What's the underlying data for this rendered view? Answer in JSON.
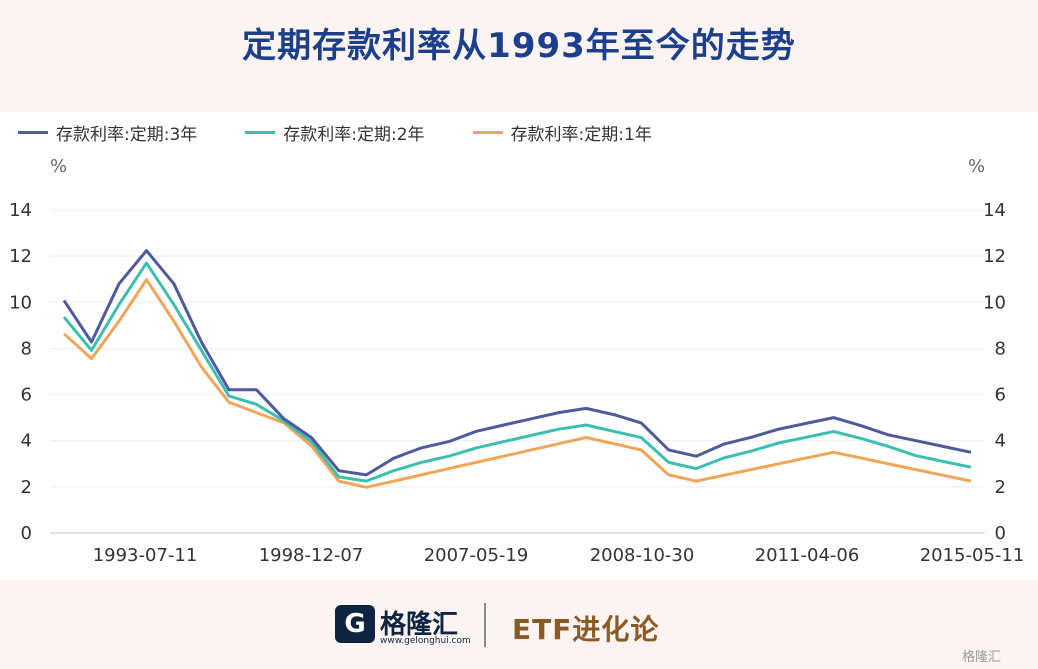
{
  "title": "定期存款利率从1993年至今的走势",
  "legend": [
    {
      "label": "存款利率:定期:3年",
      "color": "#4e5a9c"
    },
    {
      "label": "存款利率:定期:2年",
      "color": "#3dbfb0"
    },
    {
      "label": "存款利率:定期:1年",
      "color": "#f0a65a"
    }
  ],
  "unit_left": "%",
  "unit_right": "%",
  "footer": {
    "logo_mark": "G",
    "brand": "格隆汇",
    "url": "www.gelonghui.com",
    "etf": "ETF进化论",
    "watermark": "格隆汇"
  },
  "chart_data": {
    "type": "line",
    "title": "定期存款利率从1993年至今的走势",
    "x_tick_labels": [
      "1993-07-11",
      "1998-12-07",
      "2007-05-19",
      "2008-10-30",
      "2011-04-06",
      "2015-05-11"
    ],
    "ylim": [
      0,
      14
    ],
    "yticks": [
      0,
      2,
      4,
      6,
      8,
      10,
      12,
      14
    ],
    "grid": true,
    "legend_position": "top-left",
    "series": [
      {
        "name": "存款利率:定期:3年",
        "color": "#4e5a9c",
        "values": [
          10.08,
          8.28,
          10.8,
          12.24,
          10.8,
          8.28,
          6.21,
          6.21,
          4.95,
          4.14,
          2.7,
          2.52,
          3.24,
          3.69,
          3.96,
          4.41,
          4.68,
          4.95,
          5.22,
          5.4,
          5.13,
          4.77,
          3.6,
          3.33,
          3.85,
          4.15,
          4.5,
          4.75,
          5.0,
          4.65,
          4.25,
          4.0,
          3.75,
          3.5
        ]
      },
      {
        "name": "存款利率:定期:2年",
        "color": "#3dbfb0",
        "values": [
          9.36,
          7.92,
          9.9,
          11.7,
          9.9,
          7.92,
          5.94,
          5.58,
          4.86,
          3.96,
          2.43,
          2.25,
          2.7,
          3.06,
          3.33,
          3.69,
          3.96,
          4.23,
          4.5,
          4.68,
          4.41,
          4.14,
          3.06,
          2.79,
          3.25,
          3.55,
          3.9,
          4.15,
          4.4,
          4.1,
          3.75,
          3.35,
          3.1,
          2.85
        ]
      },
      {
        "name": "存款利率:定期:1年",
        "color": "#f0a65a",
        "values": [
          8.64,
          7.56,
          9.18,
          10.98,
          9.18,
          7.2,
          5.67,
          5.22,
          4.77,
          3.78,
          2.25,
          1.98,
          2.25,
          2.52,
          2.79,
          3.06,
          3.33,
          3.6,
          3.87,
          4.14,
          3.87,
          3.6,
          2.52,
          2.25,
          2.5,
          2.75,
          3.0,
          3.25,
          3.5,
          3.25,
          3.0,
          2.75,
          2.5,
          2.25
        ]
      }
    ]
  }
}
